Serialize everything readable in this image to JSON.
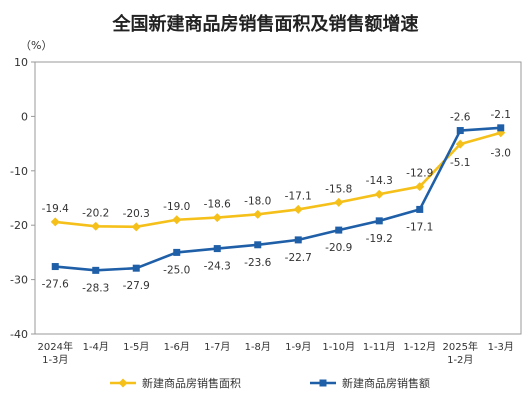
{
  "chart_data": {
    "type": "line",
    "title": "全国新建商品房销售面积及销售额增速",
    "unit": "（%）",
    "categories": [
      [
        "2024年",
        "1-3月"
      ],
      [
        "1-4月"
      ],
      [
        "1-5月"
      ],
      [
        "1-6月"
      ],
      [
        "1-7月"
      ],
      [
        "1-8月"
      ],
      [
        "1-9月"
      ],
      [
        "1-10月"
      ],
      [
        "1-11月"
      ],
      [
        "1-12月"
      ],
      [
        "2025年",
        "1-2月"
      ],
      [
        "1-3月"
      ]
    ],
    "series": [
      {
        "name": "新建商品房销售面积",
        "color": "#f5c01a",
        "marker": "diamond",
        "values": [
          -19.4,
          -20.2,
          -20.3,
          -19.0,
          -18.6,
          -18.0,
          -17.1,
          -15.8,
          -14.3,
          -12.9,
          -5.1,
          -3.0
        ],
        "labels": [
          "-19.4",
          "-20.2",
          "-20.3",
          "-19.0",
          "-18.6",
          "-18.0",
          "-17.1",
          "-15.8",
          "-14.3",
          "-12.9",
          "-5.1",
          "-3.0"
        ]
      },
      {
        "name": "新建商品房销售额",
        "color": "#1f5fa8",
        "marker": "square",
        "values": [
          -27.6,
          -28.3,
          -27.9,
          -25.0,
          -24.3,
          -23.6,
          -22.7,
          -20.9,
          -19.2,
          -17.1,
          -2.6,
          -2.1
        ],
        "labels": [
          "-27.6",
          "-28.3",
          "-27.9",
          "-25.0",
          "-24.3",
          "-23.6",
          "-22.7",
          "-20.9",
          "-19.2",
          "-17.1",
          "-2.6",
          "-2.1"
        ]
      }
    ],
    "ylim": [
      -40,
      10
    ],
    "yticks": [
      "10",
      "0",
      "-10",
      "-20",
      "-30",
      "-40"
    ],
    "grid": false,
    "legend_position": "bottom"
  }
}
